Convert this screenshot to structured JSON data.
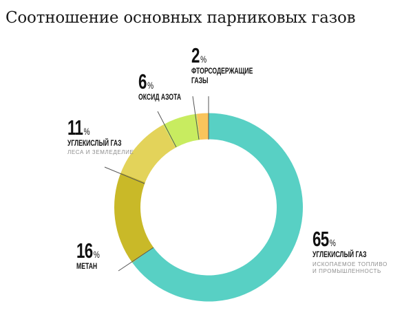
{
  "title": "Соотношение основных парниковых газов",
  "chart_data": {
    "type": "pie",
    "variant": "donut",
    "title": "Соотношение основных парниковых газов",
    "start_angle_deg": 0,
    "direction": "clockwise",
    "series": [
      {
        "value": 65,
        "label": "65",
        "unit": "%",
        "name": "УГЛЕКИСЛЫЙ ГАЗ",
        "sub": [
          "ИСКОПАЕМОЕ ТОПЛИВО",
          "И ПРОМЫШЛЕННОСТЬ"
        ],
        "color": "#58D0C4"
      },
      {
        "value": 16,
        "label": "16",
        "unit": "%",
        "name": "МЕТАН",
        "sub": [],
        "color": "#C9B928"
      },
      {
        "value": 11,
        "label": "11",
        "unit": "%",
        "name": "УГЛЕКИСЛЫЙ ГАЗ",
        "sub": [
          "ЛЕСА И ЗЕМЛЕДЕЛИЕ"
        ],
        "color": "#E3D35A"
      },
      {
        "value": 6,
        "label": "6",
        "unit": "%",
        "name": "ОКСИД АЗОТА",
        "sub": [],
        "color": "#C8EC60"
      },
      {
        "value": 2,
        "label": "2",
        "unit": "%",
        "name": [
          "ФТОРСОДЕРЖАЩИЕ",
          "ГАЗЫ"
        ],
        "sub": [],
        "color": "#F9C45C"
      }
    ]
  },
  "labels": {
    "co2_fossil": {
      "pct": "65",
      "sign": "%",
      "name": "УГЛЕКИСЛЫЙ ГАЗ",
      "sub1": "ИСКОПАЕМОЕ ТОПЛИВО",
      "sub2": "И ПРОМЫШЛЕННОСТЬ"
    },
    "methane": {
      "pct": "16",
      "sign": "%",
      "name": "МЕТАН"
    },
    "co2_forest": {
      "pct": "11",
      "sign": "%",
      "name": "УГЛЕКИСЛЫЙ ГАЗ",
      "sub1": "ЛЕСА И ЗЕМЛЕДЕЛИЕ"
    },
    "nitrous": {
      "pct": "6",
      "sign": "%",
      "name": "ОКСИД АЗОТА"
    },
    "fluorinated": {
      "pct": "2",
      "sign": "%",
      "name1": "ФТОРСОДЕРЖАЩИЕ",
      "name2": "ГАЗЫ"
    }
  }
}
